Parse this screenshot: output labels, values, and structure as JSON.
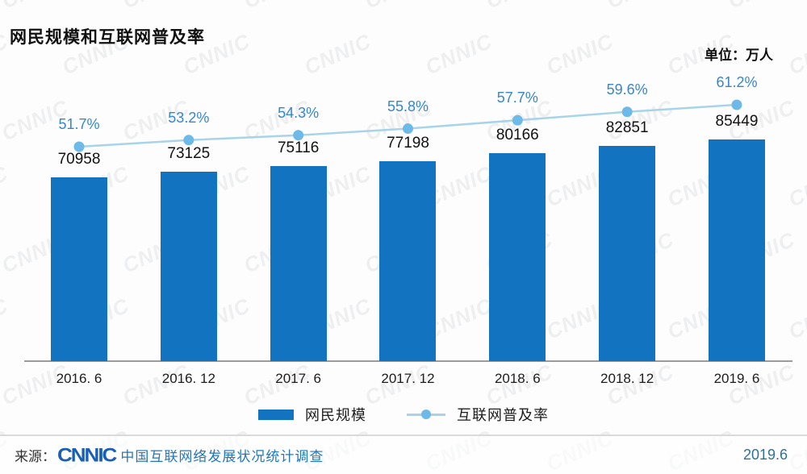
{
  "title": "网民规模和互联网普及率",
  "unit_label": "单位：万人",
  "watermark": {
    "text": "CNNIC"
  },
  "colors": {
    "bar": "#1273c0",
    "line": "#a8d4ea",
    "marker": "#6db9e8",
    "pct_label": "#3787c8",
    "value_label": "#121212",
    "axis": "#9b9b9b",
    "watermark": "rgba(110,120,135,0.10)"
  },
  "chart_data": {
    "type": "bar",
    "subtype": "bar+line combo",
    "title": "网民规模和互联网普及率",
    "unit": "万人",
    "categories": [
      "2016. 6",
      "2016. 12",
      "2017. 6",
      "2017. 12",
      "2018. 6",
      "2018. 12",
      "2019. 6"
    ],
    "series": [
      {
        "name": "网民规模",
        "type": "bar",
        "unit": "万人",
        "values": [
          70958,
          73125,
          75116,
          77198,
          80166,
          82851,
          85449
        ]
      },
      {
        "name": "互联网普及率",
        "type": "line",
        "unit": "%",
        "values": [
          51.7,
          53.2,
          54.3,
          55.8,
          57.7,
          59.6,
          61.2
        ],
        "labels": [
          "51.7%",
          "53.2%",
          "54.3%",
          "55.8%",
          "57.7%",
          "59.6%",
          "61.2%"
        ]
      }
    ],
    "legend_position": "bottom",
    "grid": false,
    "y_axis_visible": false,
    "bar_ylim": [
      0,
      90000
    ],
    "line_ylim_percent": [
      48,
      64
    ]
  },
  "legend": {
    "bar_label": "网民规模",
    "line_label": "互联网普及率"
  },
  "footer": {
    "source_prefix": "来源：",
    "logo": "CNNIC",
    "source_text": "中国互联网络发展状况统计调查",
    "date": "2019.6"
  }
}
